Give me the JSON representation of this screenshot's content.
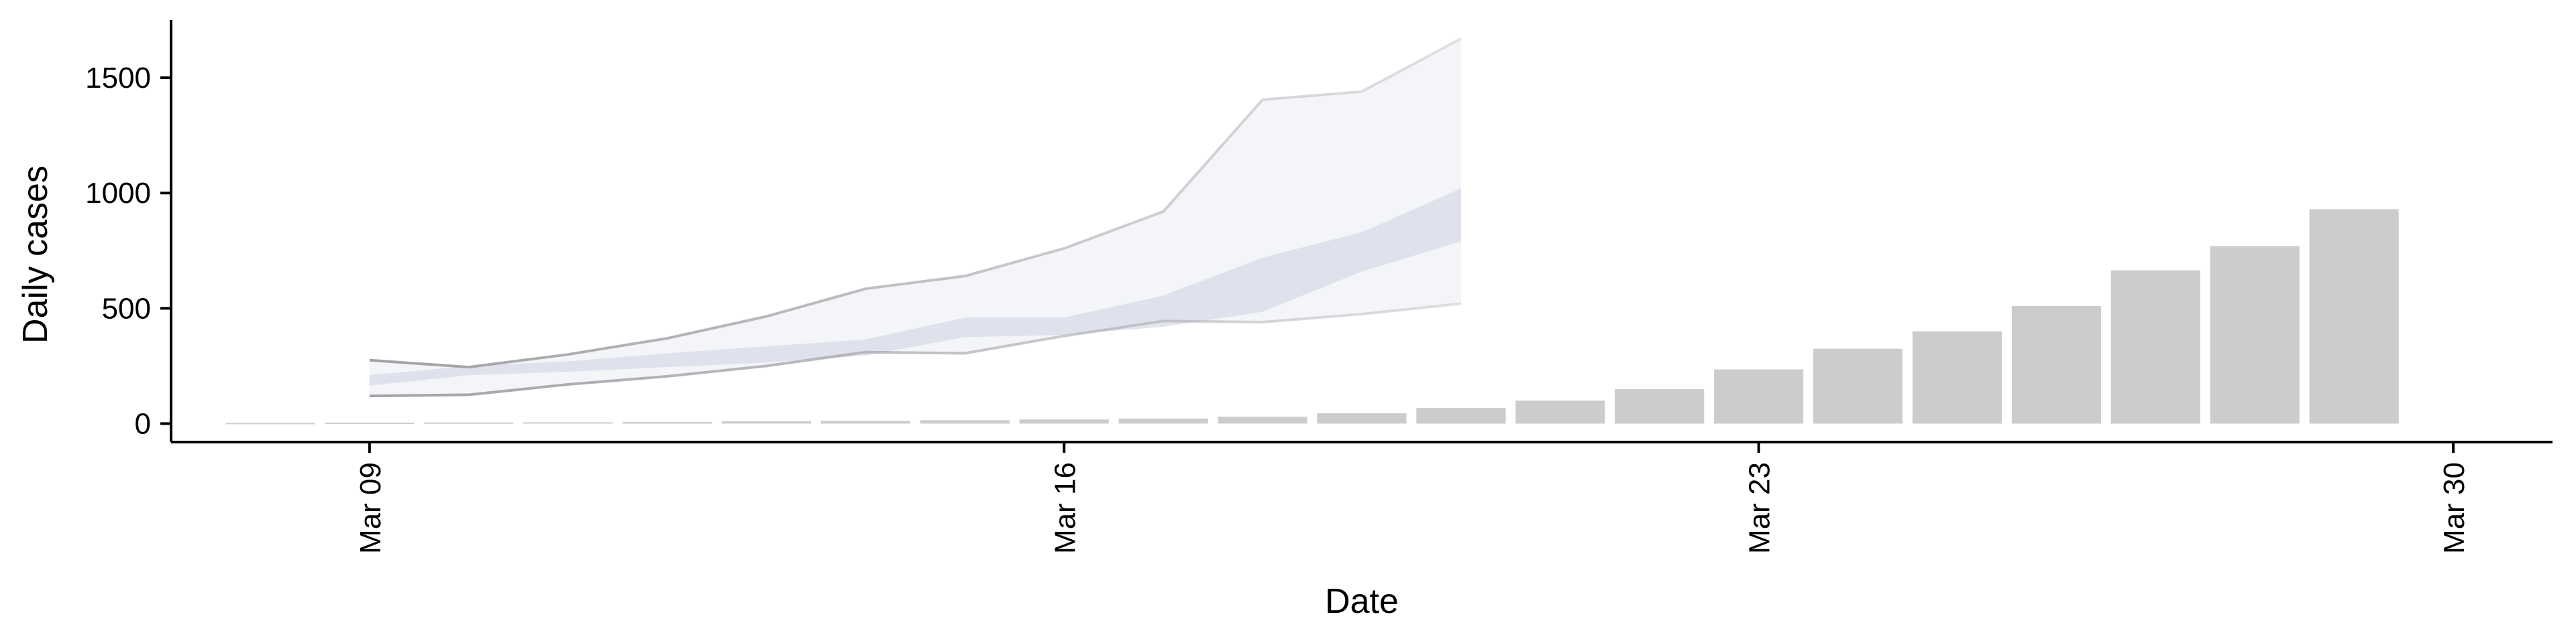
{
  "chart_data": {
    "type": "bar",
    "xlabel": "Date",
    "ylabel": "Daily cases",
    "x_ticks": [
      {
        "date": "2020-03-09",
        "label": "Mar 09"
      },
      {
        "date": "2020-03-16",
        "label": "Mar 16"
      },
      {
        "date": "2020-03-23",
        "label": "Mar 23"
      },
      {
        "date": "2020-03-30",
        "label": "Mar 30"
      }
    ],
    "y_ticks": [
      0,
      500,
      1000,
      1500
    ],
    "ylim": [
      -80,
      1750
    ],
    "xlim": [
      "2020-03-07",
      "2020-03-31"
    ],
    "bars": {
      "dates": [
        "2020-03-08",
        "2020-03-09",
        "2020-03-10",
        "2020-03-11",
        "2020-03-12",
        "2020-03-13",
        "2020-03-14",
        "2020-03-15",
        "2020-03-16",
        "2020-03-17",
        "2020-03-18",
        "2020-03-19",
        "2020-03-20",
        "2020-03-21",
        "2020-03-22",
        "2020-03-23",
        "2020-03-24",
        "2020-03-25",
        "2020-03-26",
        "2020-03-27",
        "2020-03-28",
        "2020-03-29"
      ],
      "values": [
        3,
        4,
        5,
        6,
        7,
        10,
        12,
        15,
        18,
        22,
        30,
        45,
        68,
        100,
        150,
        235,
        325,
        400,
        510,
        665,
        770,
        930
      ]
    },
    "projection": {
      "dates": [
        "2020-03-09",
        "2020-03-10",
        "2020-03-11",
        "2020-03-12",
        "2020-03-13",
        "2020-03-14",
        "2020-03-15",
        "2020-03-16",
        "2020-03-17",
        "2020-03-18",
        "2020-03-19",
        "2020-03-20"
      ],
      "outer_upper": [
        275,
        245,
        300,
        370,
        465,
        585,
        640,
        760,
        920,
        1405,
        1440,
        1670
      ],
      "outer_lower": [
        120,
        125,
        170,
        205,
        250,
        310,
        305,
        380,
        445,
        440,
        475,
        520
      ],
      "inner_upper": [
        210,
        250,
        270,
        305,
        335,
        365,
        460,
        460,
        555,
        720,
        830,
        1020
      ],
      "inner_lower": [
        165,
        210,
        225,
        245,
        265,
        295,
        375,
        385,
        420,
        485,
        660,
        790
      ]
    },
    "colors": {
      "bar": "#cccccc",
      "outer_band": "#f2f3f7",
      "inner_band": "#d5d9e8",
      "outer_line": "#a2a2a6",
      "axis": "#000000"
    }
  }
}
